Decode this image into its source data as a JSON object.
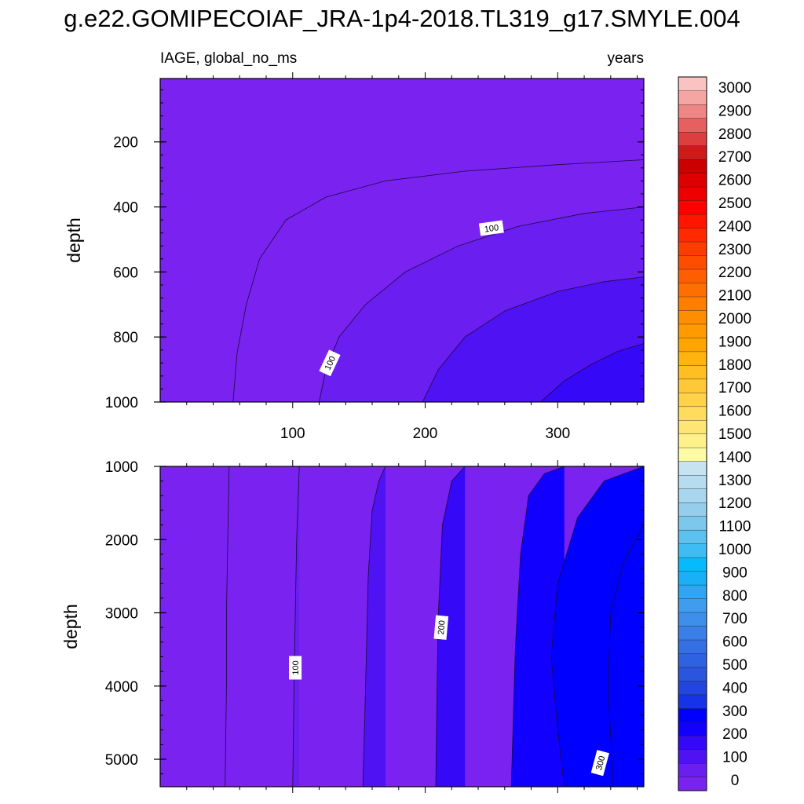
{
  "header": {
    "title": "g.e22.GOMIPECOIAF_JRA-1p4-2018.TL319_g17.SMYLE.004",
    "subtitle_left": "IAGE, global_no_ms",
    "subtitle_right": "years"
  },
  "chart_data": {
    "type": "heatmap",
    "title": "g.e22.GOMIPECOIAF_JRA-1p4-2018.TL319_g17.SMYLE.004",
    "variable": "IAGE, global_no_ms",
    "units": "years",
    "x_range": [
      0,
      365
    ],
    "x_ticks": [
      100,
      200,
      300
    ],
    "panels": [
      {
        "name": "upper",
        "ylabel": "depth",
        "y_range": [
          5,
          1000
        ],
        "y_ticks": [
          200,
          400,
          600,
          800,
          1000
        ],
        "contours": [
          {
            "level": 50,
            "points": [
              [
                55,
                1000
              ],
              [
                58,
                850
              ],
              [
                65,
                700
              ],
              [
                75,
                560
              ],
              [
                95,
                440
              ],
              [
                125,
                370
              ],
              [
                170,
                320
              ],
              [
                230,
                290
              ],
              [
                300,
                270
              ],
              [
                365,
                255
              ]
            ]
          },
          {
            "level": 100,
            "points": [
              [
                120,
                1000
              ],
              [
                125,
                900
              ],
              [
                135,
                800
              ],
              [
                155,
                700
              ],
              [
                185,
                600
              ],
              [
                225,
                520
              ],
              [
                270,
                460
              ],
              [
                320,
                420
              ],
              [
                365,
                400
              ]
            ]
          },
          {
            "level": 150,
            "points": [
              [
                198,
                1000
              ],
              [
                210,
                900
              ],
              [
                230,
                800
              ],
              [
                260,
                720
              ],
              [
                300,
                660
              ],
              [
                335,
                630
              ],
              [
                365,
                615
              ]
            ]
          },
          {
            "level": 200,
            "points": [
              [
                287,
                1000
              ],
              [
                305,
                935
              ],
              [
                325,
                885
              ],
              [
                345,
                845
              ],
              [
                365,
                820
              ]
            ]
          }
        ],
        "contour_labels": [
          {
            "text": "100",
            "x": 250,
            "y": 465,
            "angle": -8
          },
          {
            "text": "100",
            "x": 128,
            "y": 880,
            "angle": -65
          }
        ]
      },
      {
        "name": "lower",
        "ylabel": "depth",
        "y_range": [
          1000,
          5375
        ],
        "y_ticks": [
          1000,
          2000,
          3000,
          4000,
          5000
        ],
        "contours": [
          {
            "level": 50,
            "points": [
              [
                52,
                1000
              ],
              [
                51,
                2000
              ],
              [
                50,
                3000
              ],
              [
                50,
                4000
              ],
              [
                49,
                5375
              ]
            ]
          },
          {
            "level": 100,
            "points": [
              [
                105,
                1000
              ],
              [
                103,
                2000
              ],
              [
                102,
                3000
              ],
              [
                101,
                4000
              ],
              [
                100,
                5375
              ]
            ]
          },
          {
            "level": 150,
            "points": [
              [
                170,
                1000
              ],
              [
                165,
                1200
              ],
              [
                160,
                1600
              ],
              [
                157,
                2500
              ],
              [
                155,
                4000
              ],
              [
                153,
                5375
              ]
            ]
          },
          {
            "level": 200,
            "points": [
              [
                230,
                1000
              ],
              [
                220,
                1200
              ],
              [
                213,
                1800
              ],
              [
                210,
                3000
              ],
              [
                209,
                4000
              ],
              [
                208,
                5375
              ]
            ]
          },
          {
            "level": 250,
            "points": [
              [
                305,
                1000
              ],
              [
                290,
                1100
              ],
              [
                278,
                1400
              ],
              [
                272,
                2200
              ],
              [
                268,
                3500
              ],
              [
                265,
                5375
              ]
            ]
          },
          {
            "level": 300,
            "points": [
              [
                365,
                1000
              ],
              [
                335,
                1200
              ],
              [
                315,
                1700
              ],
              [
                300,
                2600
              ],
              [
                295,
                3600
              ],
              [
                300,
                4600
              ],
              [
                305,
                5375
              ]
            ]
          },
          {
            "level": 350,
            "points": [
              [
                365,
                1800
              ],
              [
                350,
                2300
              ],
              [
                340,
                3000
              ],
              [
                338,
                4000
              ],
              [
                342,
                5375
              ]
            ]
          }
        ],
        "contour_labels": [
          {
            "text": "100",
            "x": 102,
            "y": 3750,
            "angle": -90
          },
          {
            "text": "200",
            "x": 212,
            "y": 3200,
            "angle": -85
          },
          {
            "text": "300",
            "x": 332,
            "y": 5050,
            "angle": -75
          }
        ]
      }
    ],
    "colorbar": {
      "labels": [
        "0",
        "100",
        "200",
        "300",
        "400",
        "500",
        "600",
        "700",
        "800",
        "900",
        "1000",
        "1100",
        "1200",
        "1300",
        "1400",
        "1500",
        "1600",
        "1700",
        "1800",
        "1900",
        "2000",
        "2100",
        "2200",
        "2300",
        "2400",
        "2500",
        "2600",
        "2700",
        "2800",
        "2900",
        "3000"
      ],
      "colors": [
        "#7a22f0",
        "#6a1ef0",
        "#4f12f2",
        "#3508f8",
        "#1200ff",
        "#0000ff",
        "#1733e8",
        "#2245dd",
        "#2a55de",
        "#2f62e0",
        "#3470e3",
        "#3a7fe7",
        "#3d8fea",
        "#3f9cee",
        "#2fa6f3",
        "#1aaff6",
        "#05bbfb",
        "#3fbdf2",
        "#5cc1ee",
        "#7bc8ec",
        "#94ceec",
        "#a7d6ee",
        "#b6dcf0",
        "#c6e3f2",
        "#fdfba4",
        "#fef18c",
        "#fee675",
        "#ffdc5e",
        "#ffd24a",
        "#ffc836",
        "#ffbf22",
        "#ffb30e",
        "#ffa500",
        "#ff9a00",
        "#ff8d00",
        "#ff7e00",
        "#ff6f00",
        "#ff5e00",
        "#ff4d00",
        "#ff3c00",
        "#ff2a00",
        "#ff1500",
        "#ff0000",
        "#ee0000",
        "#dd0000",
        "#cc0000",
        "#cf1a1a",
        "#dd3e3e",
        "#e85f5f",
        "#f08585",
        "#f6a5a5",
        "#fbc2c2"
      ]
    }
  }
}
